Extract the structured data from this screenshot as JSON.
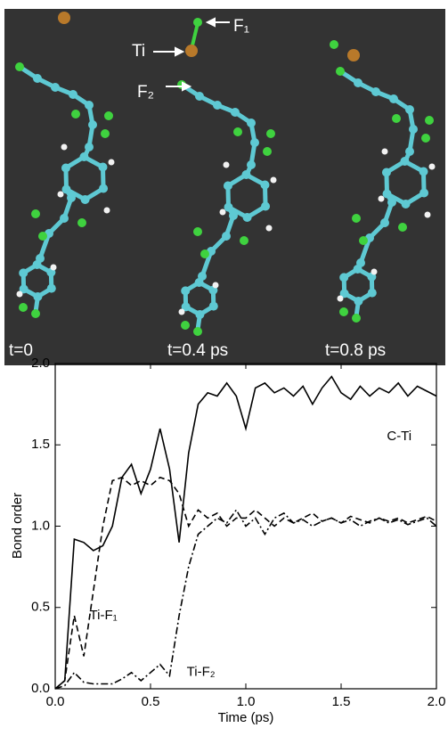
{
  "snapshots": {
    "time_labels": [
      "t=0",
      "t=0.4 ps",
      "t=0.8 ps"
    ],
    "atom_labels": [
      "Ti",
      "F₁",
      "F₂"
    ]
  },
  "chart_data": {
    "type": "line",
    "x_label": "Time (ps)",
    "y_label": "Bond order",
    "x": [
      0,
      0.05,
      0.1,
      0.15,
      0.2,
      0.25,
      0.3,
      0.35,
      0.4,
      0.45,
      0.5,
      0.55,
      0.6,
      0.65,
      0.7,
      0.75,
      0.8,
      0.85,
      0.9,
      0.95,
      1.0,
      1.05,
      1.1,
      1.15,
      1.2,
      1.25,
      1.3,
      1.35,
      1.4,
      1.45,
      1.5,
      1.55,
      1.6,
      1.65,
      1.7,
      1.75,
      1.8,
      1.85,
      1.9,
      1.95,
      2.0
    ],
    "series": [
      {
        "name": "C-Ti",
        "color": "#000000",
        "dash": "solid",
        "values": [
          0,
          0.05,
          0.92,
          0.9,
          0.85,
          0.88,
          1.0,
          1.3,
          1.38,
          1.2,
          1.35,
          1.6,
          1.35,
          0.9,
          1.45,
          1.75,
          1.82,
          1.8,
          1.88,
          1.8,
          1.6,
          1.85,
          1.88,
          1.82,
          1.85,
          1.8,
          1.86,
          1.75,
          1.85,
          1.92,
          1.82,
          1.78,
          1.86,
          1.8,
          1.85,
          1.82,
          1.88,
          1.8,
          1.86,
          1.83,
          1.8
        ]
      },
      {
        "name": "Ti-F₁",
        "color": "#000000",
        "dash": "dashed",
        "values": [
          0,
          0.05,
          0.45,
          0.2,
          0.6,
          1.0,
          1.28,
          1.3,
          1.25,
          1.28,
          1.25,
          1.3,
          1.28,
          1.2,
          1.0,
          1.1,
          1.05,
          1.08,
          1.0,
          1.05,
          1.05,
          1.1,
          1.05,
          1.0,
          1.05,
          1.02,
          1.05,
          1.08,
          1.03,
          1.05,
          1.02,
          1.06,
          1.04,
          1.02,
          1.05,
          1.03,
          1.05,
          1.02,
          1.04,
          1.06,
          1.03
        ]
      },
      {
        "name": "Ti-F₂",
        "color": "#000000",
        "dash": "dashdot",
        "values": [
          0,
          0.02,
          0.1,
          0.04,
          0.03,
          0.03,
          0.03,
          0.06,
          0.1,
          0.05,
          0.1,
          0.15,
          0.08,
          0.45,
          0.75,
          0.95,
          1.0,
          1.05,
          1.02,
          1.1,
          1.0,
          1.05,
          0.95,
          1.05,
          1.08,
          1.02,
          1.04,
          1.0,
          1.03,
          1.05,
          1.02,
          1.04,
          1.0,
          1.03,
          1.05,
          1.02,
          1.04,
          1.01,
          1.03,
          1.05,
          1.0
        ]
      }
    ],
    "xlim": [
      0,
      2.0
    ],
    "ylim": [
      0,
      2.0
    ],
    "xticks": [
      {
        "value": 0,
        "label": "0.0"
      },
      {
        "value": 0.5,
        "label": "0.5"
      },
      {
        "value": 1.0,
        "label": "1.0"
      },
      {
        "value": 1.5,
        "label": "1.5"
      },
      {
        "value": 2.0,
        "label": "2.0"
      }
    ],
    "yticks": [
      {
        "value": 0,
        "label": "0.0"
      },
      {
        "value": 0.5,
        "label": "0.5"
      },
      {
        "value": 1.0,
        "label": "1.0"
      },
      {
        "value": 1.5,
        "label": "1.5"
      },
      {
        "value": 2.0,
        "label": "2.0"
      }
    ],
    "grid": false
  }
}
